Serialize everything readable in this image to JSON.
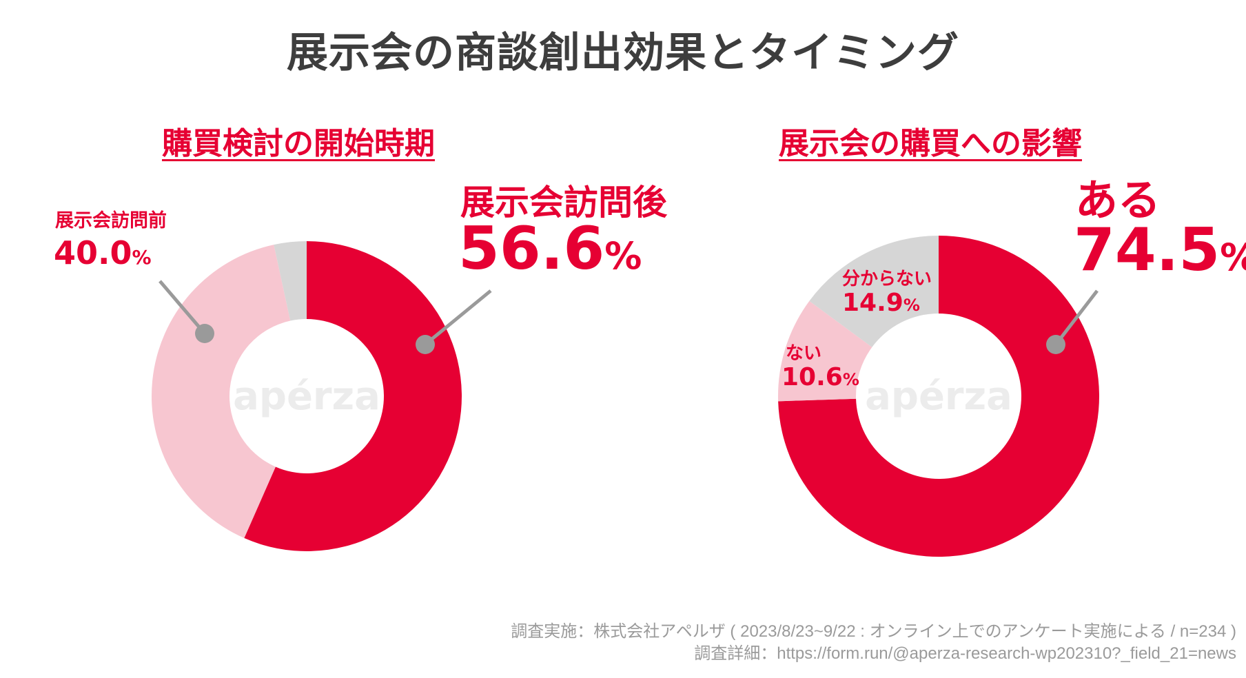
{
  "title": "展示会の商談創出効果とタイミング",
  "watermark": "apérza",
  "colors": {
    "accent": "#e60033",
    "light": "#f7c6d0",
    "gray": "#d6d6d6",
    "title": "#3d3d3d",
    "note": "#9a9a9a"
  },
  "chart_data": [
    {
      "type": "pie",
      "title": "購買検討の開始時期",
      "slices": [
        {
          "label": "展示会訪問後",
          "value": 56.6,
          "display": "56.6",
          "color": "#e60033"
        },
        {
          "label": "展示会訪問前",
          "value": 40.0,
          "display": "40.0",
          "color": "#f7c6d0"
        },
        {
          "label": "",
          "value": 3.4,
          "display": "",
          "color": "#d6d6d6"
        }
      ],
      "unit": "%"
    },
    {
      "type": "pie",
      "title": "展示会の購買への影響",
      "slices": [
        {
          "label": "ある",
          "value": 74.5,
          "display": "74.5",
          "color": "#e60033"
        },
        {
          "label": "ない",
          "value": 10.6,
          "display": "10.6",
          "color": "#f7c6d0"
        },
        {
          "label": "分からない",
          "value": 14.9,
          "display": "14.9",
          "color": "#d6d6d6"
        }
      ],
      "unit": "%"
    }
  ],
  "footnotes": {
    "line1": "調査実施：株式会社アペルザ ( 2023/8/23~9/22 : オンライン上でのアンケート実施による / n=234 )",
    "line2": "調査詳細：https://form.run/@aperza-research-wp202310?_field_21=news"
  }
}
